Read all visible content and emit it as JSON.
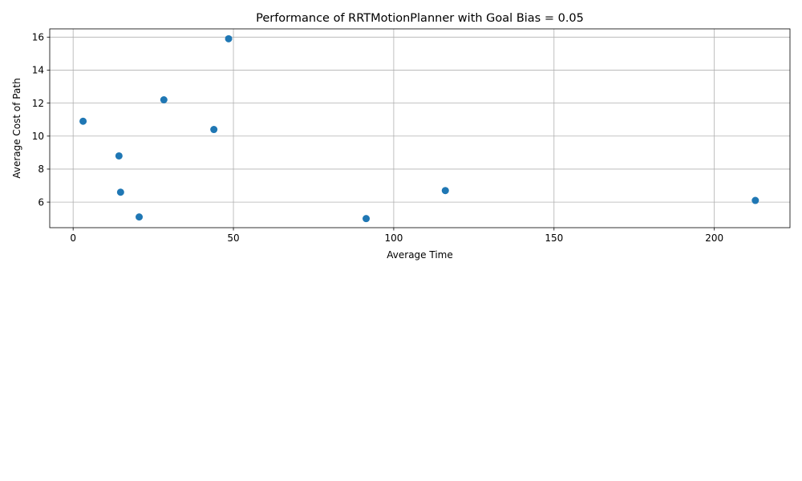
{
  "chart_data": {
    "type": "scatter",
    "title": "Performance of RRTMotionPlanner with Goal Bias = 0.05",
    "xlabel": "Average Time",
    "ylabel": "Average Cost of Path",
    "xlim": [
      -7.3,
      223.6
    ],
    "ylim": [
      4.45,
      16.5
    ],
    "xticks": [
      0,
      50,
      100,
      150,
      200
    ],
    "yticks": [
      6,
      8,
      10,
      12,
      14,
      16
    ],
    "grid": true,
    "marker_color": "#1f77b4",
    "points": [
      {
        "x": 3.1,
        "y": 10.9
      },
      {
        "x": 14.3,
        "y": 8.8
      },
      {
        "x": 14.8,
        "y": 6.6
      },
      {
        "x": 20.6,
        "y": 5.1
      },
      {
        "x": 28.3,
        "y": 12.2
      },
      {
        "x": 43.9,
        "y": 10.4
      },
      {
        "x": 48.5,
        "y": 15.9
      },
      {
        "x": 91.4,
        "y": 5.0
      },
      {
        "x": 116.1,
        "y": 6.7
      },
      {
        "x": 212.8,
        "y": 6.1
      }
    ]
  }
}
